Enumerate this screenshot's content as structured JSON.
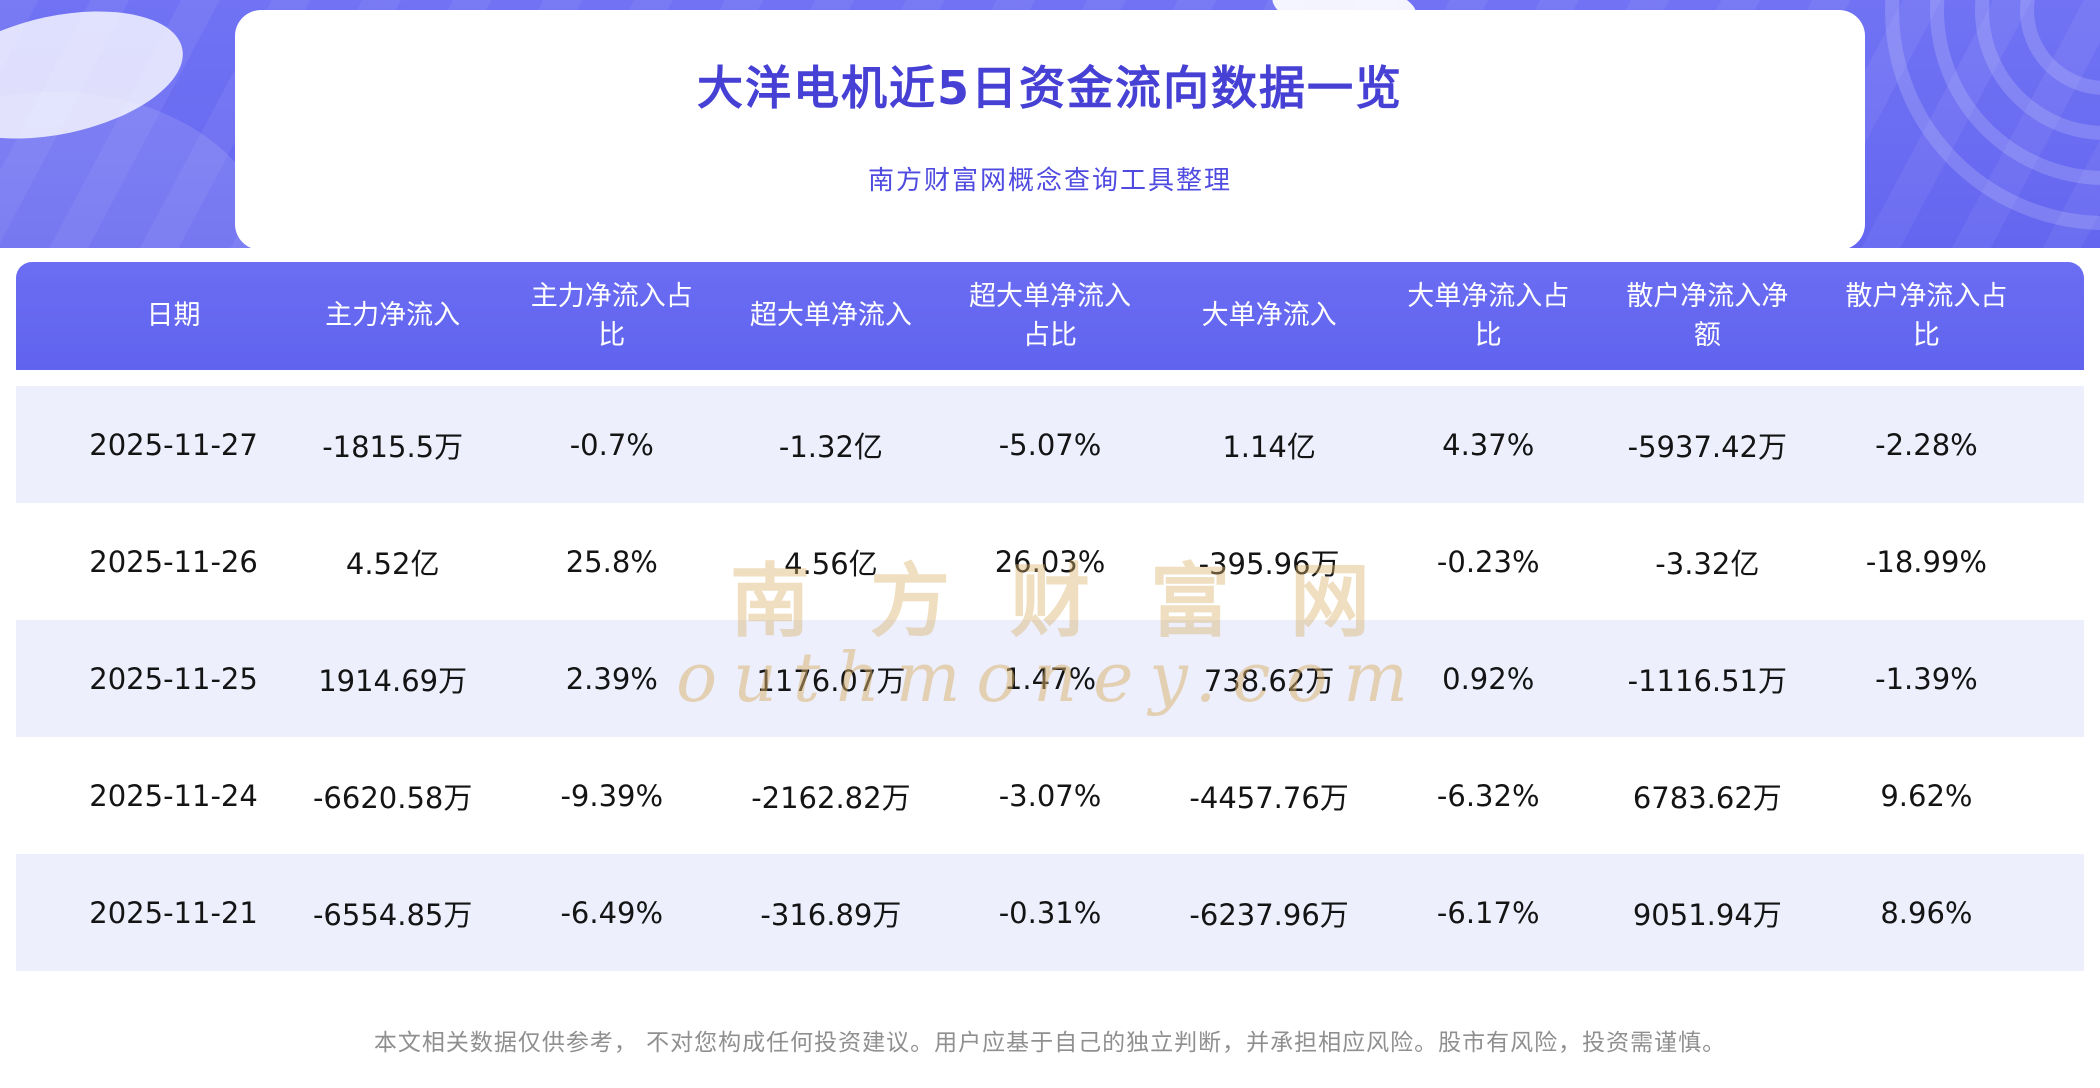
{
  "page": {
    "title": "大洋电机近5日资金流向数据一览",
    "subtitle": "南方财富网概念查询工具整理",
    "watermark_cn": "南方财富网",
    "watermark_en": "outhmoney.com",
    "disclaimer": "本文相关数据仅供参考， 不对您构成任何投资建议。用户应基于自己的独立判断，并承担相应风险。股市有风险，投资需谨慎。"
  },
  "colors": {
    "banner": "#6C6EF2",
    "table_header_bg": "#6467F0",
    "row_alt_bg": "#EDEFFD",
    "title_text": "#4740D4",
    "subtitle_text": "#4F4BE0",
    "watermark": "#D9B16A",
    "disclaimer_text": "#8F8F8F"
  },
  "chart_data": {
    "type": "table",
    "title": "大洋电机近5日资金流向数据一览",
    "columns": [
      "日期",
      "主力净流入",
      "主力净流入占比",
      "超大单净流入",
      "超大单净流入占比",
      "大单净流入",
      "大单净流入占比",
      "散户净流入净额",
      "散户净流入占比"
    ],
    "rows": [
      [
        "2025-11-27",
        "-1815.5万",
        "-0.7%",
        "-1.32亿",
        "-5.07%",
        "1.14亿",
        "4.37%",
        "-5937.42万",
        "-2.28%"
      ],
      [
        "2025-11-26",
        "4.52亿",
        "25.8%",
        "4.56亿",
        "26.03%",
        "-395.96万",
        "-0.23%",
        "-3.32亿",
        "-18.99%"
      ],
      [
        "2025-11-25",
        "1914.69万",
        "2.39%",
        "1176.07万",
        "1.47%",
        "738.62万",
        "0.92%",
        "-1116.51万",
        "-1.39%"
      ],
      [
        "2025-11-24",
        "-6620.58万",
        "-9.39%",
        "-2162.82万",
        "-3.07%",
        "-4457.76万",
        "-6.32%",
        "6783.62万",
        "9.62%"
      ],
      [
        "2025-11-21",
        "-6554.85万",
        "-6.49%",
        "-316.89万",
        "-0.31%",
        "-6237.96万",
        "-6.17%",
        "9051.94万",
        "8.96%"
      ]
    ]
  }
}
